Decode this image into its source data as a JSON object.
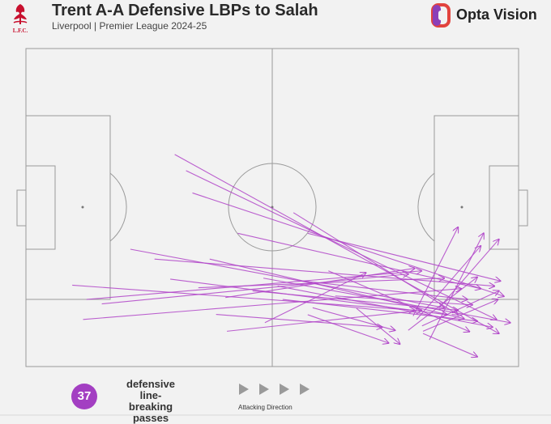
{
  "header": {
    "title": "Trent A-A Defensive LBPs to Salah",
    "subtitle": "Liverpool | Premier League 2024-25",
    "crest_text": "L.F.C.",
    "brand": "Opta Vision"
  },
  "footer": {
    "count": "37",
    "count_label": "defensive\nline-breaking\npasses",
    "direction_label": "Attacking Direction"
  },
  "colors": {
    "accent": "#a33fc2",
    "pass": "#b044c8",
    "pitch_line": "#9a9a9a",
    "crest": "#c8102e"
  },
  "chart_data": {
    "type": "pass-map",
    "x_range": [
      0,
      100
    ],
    "y_range": [
      0,
      100
    ],
    "attacking_direction": "left-to-right",
    "passes": [
      {
        "start": [
          30.2,
          33.3
        ],
        "end": [
          96,
          89.6
        ]
      },
      {
        "start": [
          32.5,
          38.4
        ],
        "end": [
          95.5,
          85.2
        ]
      },
      {
        "start": [
          33.8,
          45.4
        ],
        "end": [
          97,
          77.9
        ]
      },
      {
        "start": [
          21.2,
          63.1
        ],
        "end": [
          84.9,
          81.5
        ]
      },
      {
        "start": [
          26.1,
          66.2
        ],
        "end": [
          95.1,
          74.7
        ]
      },
      {
        "start": [
          9.4,
          74.4
        ],
        "end": [
          78.9,
          82.3
        ]
      },
      {
        "start": [
          12.3,
          78.9
        ],
        "end": [
          80.3,
          69.9
        ]
      },
      {
        "start": [
          11.6,
          85.2
        ],
        "end": [
          88.3,
          75.5
        ]
      },
      {
        "start": [
          15.4,
          80.3
        ],
        "end": [
          77.6,
          70.9
        ]
      },
      {
        "start": [
          37.3,
          66.2
        ],
        "end": [
          88.9,
          84.9
        ]
      },
      {
        "start": [
          43,
          58.1
        ],
        "end": [
          92.3,
          75.5
        ]
      },
      {
        "start": [
          48.2,
          72.2
        ],
        "end": [
          98.3,
          86.2
        ]
      },
      {
        "start": [
          54.3,
          51.6
        ],
        "end": [
          87.7,
          83.7
        ]
      },
      {
        "start": [
          57.2,
          58.1
        ],
        "end": [
          96.3,
          73.1
        ]
      },
      {
        "start": [
          61.4,
          69.9
        ],
        "end": [
          90,
          89
        ]
      },
      {
        "start": [
          29.3,
          72.5
        ],
        "end": [
          85.5,
          83.7
        ]
      },
      {
        "start": [
          35,
          75.2
        ],
        "end": [
          84.9,
          72.2
        ]
      },
      {
        "start": [
          38.6,
          83.6
        ],
        "end": [
          72.3,
          87.6
        ]
      },
      {
        "start": [
          40.5,
          78.3
        ],
        "end": [
          78.9,
          69.1
        ]
      },
      {
        "start": [
          46,
          76.2
        ],
        "end": [
          87.7,
          82.3
        ]
      },
      {
        "start": [
          51.1,
          74.7
        ],
        "end": [
          94.7,
          87.6
        ]
      },
      {
        "start": [
          52.1,
          78.9
        ],
        "end": [
          91.6,
          85.7
        ]
      },
      {
        "start": [
          56.3,
          73.1
        ],
        "end": [
          89.6,
          78.9
        ]
      },
      {
        "start": [
          58.2,
          81.5
        ],
        "end": [
          74.9,
          88.6
        ]
      },
      {
        "start": [
          62.8,
          77.8
        ],
        "end": [
          90.6,
          80.6
        ]
      },
      {
        "start": [
          40.8,
          88.9
        ],
        "end": [
          80.3,
          82.3
        ]
      },
      {
        "start": [
          48.5,
          86.2
        ],
        "end": [
          69,
          70.5
        ]
      },
      {
        "start": [
          57.2,
          83.7
        ],
        "end": [
          73.6,
          92.6
        ]
      },
      {
        "start": [
          67.1,
          81.7
        ],
        "end": [
          75.9,
          92.9
        ]
      },
      {
        "start": [
          77.6,
          88.6
        ],
        "end": [
          91.6,
          71.9
        ]
      },
      {
        "start": [
          80.6,
          88.9
        ],
        "end": [
          95.8,
          78.9
        ]
      },
      {
        "start": [
          81.9,
          91.6
        ],
        "end": [
          92.9,
          58.1
        ]
      },
      {
        "start": [
          83.9,
          81.5
        ],
        "end": [
          96,
          60
        ]
      },
      {
        "start": [
          78.6,
          84.1
        ],
        "end": [
          87.7,
          56.2
        ]
      },
      {
        "start": [
          79.3,
          85.2
        ],
        "end": [
          92.3,
          62.1
        ]
      },
      {
        "start": [
          80.4,
          87.2
        ],
        "end": [
          96,
          76.2
        ]
      },
      {
        "start": [
          80.6,
          89.6
        ],
        "end": [
          91.6,
          96.9
        ]
      }
    ]
  }
}
